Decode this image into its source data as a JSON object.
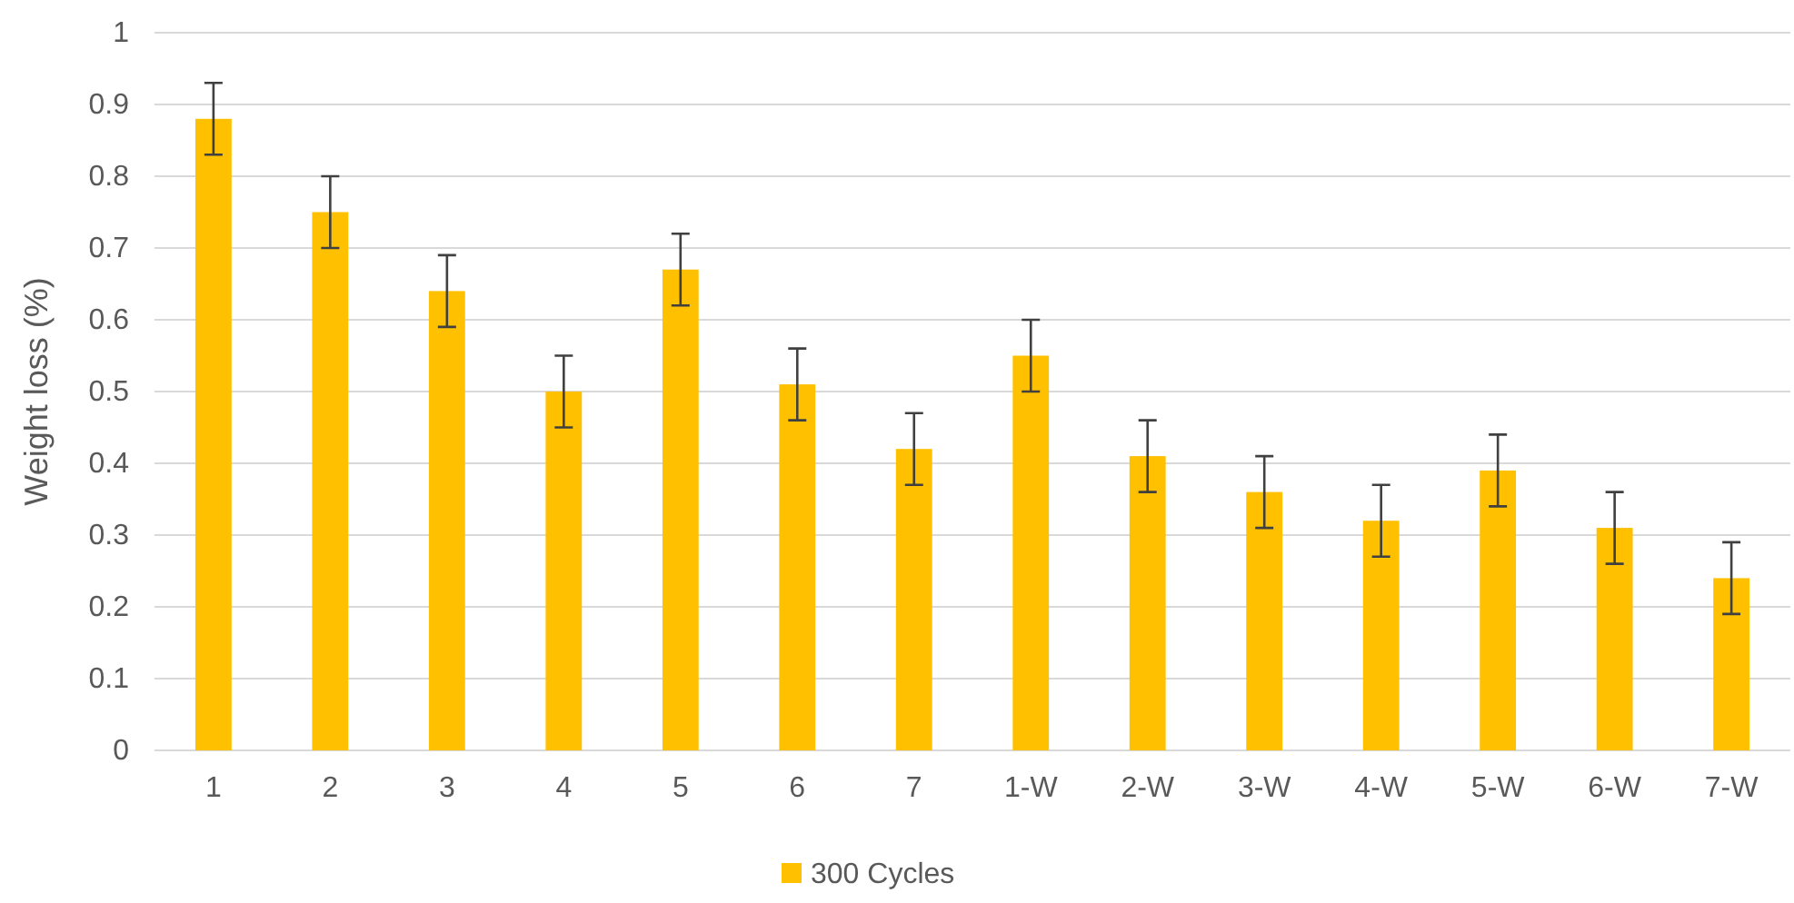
{
  "chart_data": {
    "type": "bar",
    "ylabel": "Weight loss (%)",
    "categories": [
      "1",
      "2",
      "3",
      "4",
      "5",
      "6",
      "7",
      "1-W",
      "2-W",
      "3-W",
      "4-W",
      "5-W",
      "6-W",
      "7-W"
    ],
    "series": [
      {
        "name": "300 Cycles",
        "color": "#ffc000",
        "values": [
          0.88,
          0.75,
          0.64,
          0.5,
          0.67,
          0.51,
          0.42,
          0.55,
          0.41,
          0.36,
          0.32,
          0.39,
          0.31,
          0.24
        ],
        "errors": [
          0.05,
          0.05,
          0.05,
          0.05,
          0.05,
          0.05,
          0.05,
          0.05,
          0.05,
          0.05,
          0.05,
          0.05,
          0.05,
          0.05
        ]
      }
    ],
    "ylim": [
      0,
      1
    ],
    "yticks": [
      0,
      0.1,
      0.2,
      0.3,
      0.4,
      0.5,
      0.6,
      0.7,
      0.8,
      0.9,
      1
    ],
    "grid": "y",
    "legend": "bottom"
  }
}
